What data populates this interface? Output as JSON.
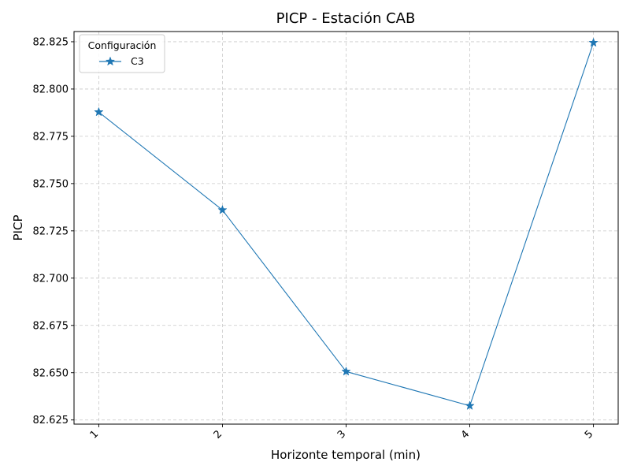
{
  "chart_data": {
    "type": "line",
    "title": "PICP - Estación CAB",
    "xlabel": "Horizonte temporal (min)",
    "ylabel": "PICP",
    "x": [
      1,
      2,
      3,
      4,
      5
    ],
    "x_tick_labels": [
      "1",
      "2",
      "3",
      "4",
      "5"
    ],
    "y_ticks": [
      82.625,
      82.65,
      82.675,
      82.7,
      82.725,
      82.75,
      82.775,
      82.8,
      82.825
    ],
    "y_tick_labels": [
      "82.625",
      "82.650",
      "82.675",
      "82.700",
      "82.725",
      "82.750",
      "82.775",
      "82.800",
      "82.825"
    ],
    "xlim": [
      0.8,
      5.2
    ],
    "ylim": [
      82.6228,
      82.8304
    ],
    "grid": true,
    "grid_style": "dashed",
    "x_tick_rotation_deg": 45,
    "legend": {
      "title": "Configuración",
      "placement": "top-left"
    },
    "series": [
      {
        "name": "C3",
        "values": [
          82.7878,
          82.736,
          82.6506,
          82.6325,
          82.8245
        ],
        "color": "#1f77b4",
        "marker": "star"
      }
    ]
  }
}
